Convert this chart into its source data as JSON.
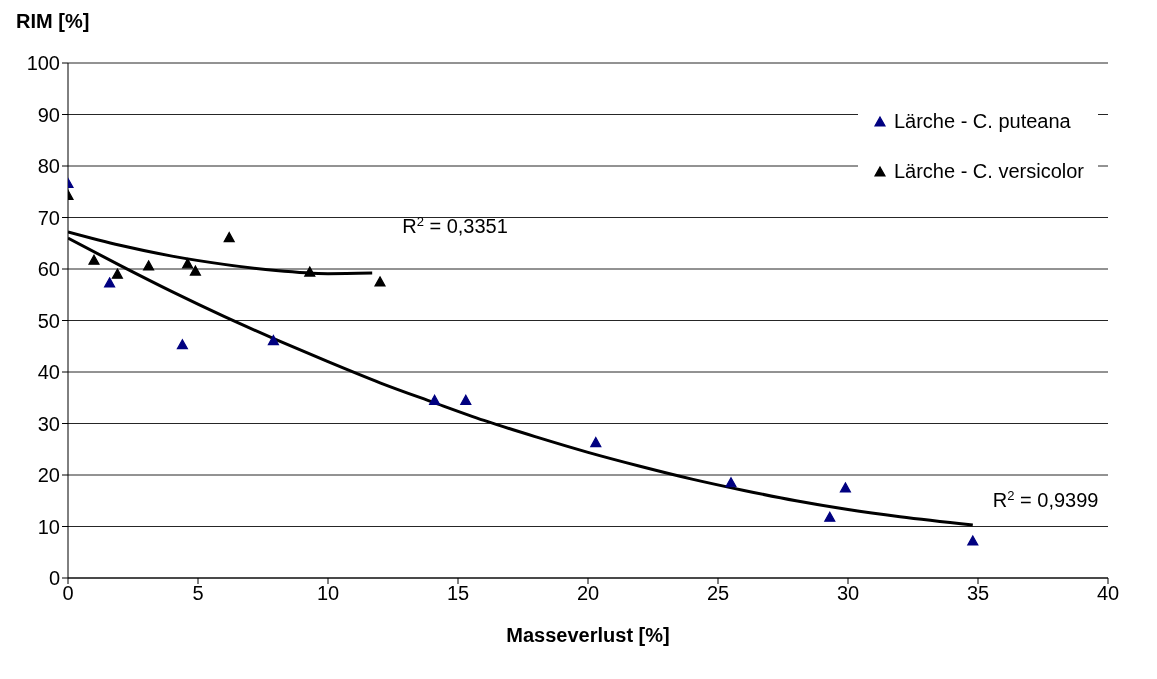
{
  "chart_data": {
    "type": "scatter",
    "ylabel": "RIM [%]",
    "xlabel": "Masseverlust [%]",
    "xlim": [
      0,
      40
    ],
    "xticks": [
      0,
      5,
      10,
      15,
      20,
      25,
      30,
      35,
      40
    ],
    "ylim": [
      0,
      100
    ],
    "yticks": [
      0,
      10,
      20,
      30,
      40,
      50,
      60,
      70,
      80,
      90,
      100
    ],
    "grid": "y",
    "legend": "top right",
    "marker": "triangle",
    "series": [
      {
        "name": "Lärche - C. puteana",
        "color": "#000080",
        "x": [
          0,
          1.6,
          4.4,
          7.9,
          14.1,
          15.3,
          20.3,
          25.5,
          29.3,
          29.9,
          34.8
        ],
        "values": [
          76.6,
          57.3,
          45.3,
          46.1,
          34.5,
          34.5,
          26.3,
          18.5,
          11.8,
          17.5,
          7.2
        ]
      },
      {
        "name": "Lärche - C. versicolor",
        "color": "#000000",
        "x": [
          0,
          1.0,
          1.9,
          3.1,
          4.6,
          4.9,
          6.2,
          9.3,
          12.0
        ],
        "values": [
          74.3,
          61.7,
          59,
          60.6,
          61,
          59.6,
          66.1,
          59.4,
          57.5
        ]
      },
      {
        "type": "line",
        "marker": "none",
        "color": "#000000",
        "x": [
          0,
          2,
          4,
          6,
          8,
          10,
          12,
          14,
          16,
          18,
          20,
          22,
          24,
          26,
          28,
          30,
          32,
          34.8
        ],
        "values": [
          66,
          60.7,
          55.6,
          50.8,
          46.3,
          42,
          37.9,
          34.2,
          30.6,
          27.4,
          24.4,
          21.7,
          19.2,
          17,
          15,
          13.3,
          11.9,
          10.3
        ]
      },
      {
        "type": "line",
        "marker": "none",
        "color": "#000000",
        "x": [
          0,
          2,
          4,
          6,
          8,
          10,
          11.7
        ],
        "values": [
          67.2,
          64.6,
          62.5,
          60.9,
          59.7,
          59.1,
          59.2
        ]
      }
    ],
    "annotations": [
      {
        "text": "R$^{2}$ = 0,3351",
        "x": 11.7,
        "y": 59.2
      },
      {
        "text": "R$^{2}$ = 0,9399",
        "x": 34.8,
        "y": 10.3
      }
    ]
  }
}
